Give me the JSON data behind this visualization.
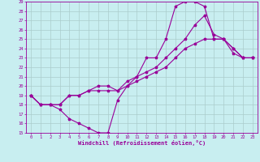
{
  "xlabel": "Windchill (Refroidissement éolien,°C)",
  "bg_color": "#c8eef0",
  "grid_color": "#aacccc",
  "line_color": "#990099",
  "xlim": [
    -0.5,
    23.5
  ],
  "ylim": [
    15,
    29
  ],
  "xticks": [
    0,
    1,
    2,
    3,
    4,
    5,
    6,
    7,
    8,
    9,
    10,
    11,
    12,
    13,
    14,
    15,
    16,
    17,
    18,
    19,
    20,
    21,
    22,
    23
  ],
  "yticks": [
    15,
    16,
    17,
    18,
    19,
    20,
    21,
    22,
    23,
    24,
    25,
    26,
    27,
    28,
    29
  ],
  "line1_x": [
    0,
    1,
    2,
    3,
    4,
    5,
    6,
    7,
    8,
    9,
    10,
    11,
    12,
    13,
    14,
    15,
    16,
    17,
    18,
    19,
    20,
    21,
    22,
    23
  ],
  "line1_y": [
    19,
    18,
    18,
    17.5,
    16.5,
    16,
    15.5,
    15,
    15,
    18.5,
    20,
    21,
    23,
    23,
    25,
    28.5,
    29,
    29,
    28.5,
    25,
    25,
    24,
    23,
    23
  ],
  "line2_x": [
    0,
    1,
    2,
    3,
    4,
    5,
    6,
    7,
    8,
    9,
    10,
    11,
    12,
    13,
    14,
    15,
    16,
    17,
    18,
    19,
    20,
    21,
    22,
    23
  ],
  "line2_y": [
    19,
    18,
    18,
    18,
    19,
    19,
    19.5,
    20,
    20,
    19.5,
    20.5,
    21,
    21.5,
    22,
    23,
    24,
    25,
    26.5,
    27.5,
    25.5,
    25,
    24,
    23,
    23
  ],
  "line3_x": [
    0,
    1,
    2,
    3,
    4,
    5,
    6,
    7,
    8,
    9,
    10,
    11,
    12,
    13,
    14,
    15,
    16,
    17,
    18,
    19,
    20,
    21,
    22,
    23
  ],
  "line3_y": [
    19,
    18,
    18,
    18,
    19,
    19,
    19.5,
    19.5,
    19.5,
    19.5,
    20,
    20.5,
    21,
    21.5,
    22,
    23,
    24,
    24.5,
    25,
    25,
    25,
    23.5,
    23,
    23
  ]
}
